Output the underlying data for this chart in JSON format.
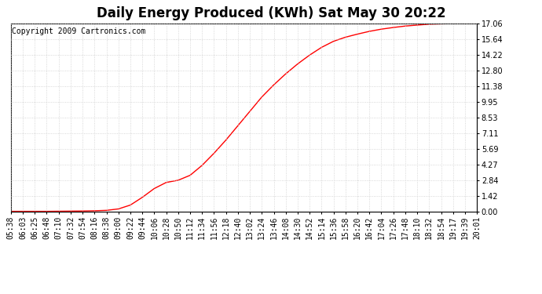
{
  "title": "Daily Energy Produced (KWh) Sat May 30 20:22",
  "copyright_text": "Copyright 2009 Cartronics.com",
  "line_color": "#ff0000",
  "background_color": "#ffffff",
  "plot_bg_color": "#ffffff",
  "grid_color": "#cccccc",
  "yticks": [
    0.0,
    1.42,
    2.84,
    4.27,
    5.69,
    7.11,
    8.53,
    9.95,
    11.38,
    12.8,
    14.22,
    15.64,
    17.06
  ],
  "ylim": [
    0.0,
    17.06
  ],
  "xtick_labels": [
    "05:38",
    "06:03",
    "06:25",
    "06:48",
    "07:10",
    "07:32",
    "07:54",
    "08:16",
    "08:38",
    "09:00",
    "09:22",
    "09:44",
    "10:06",
    "10:28",
    "10:50",
    "11:12",
    "11:34",
    "11:56",
    "12:18",
    "12:40",
    "13:02",
    "13:24",
    "13:46",
    "14:08",
    "14:30",
    "14:52",
    "15:14",
    "15:36",
    "15:58",
    "16:20",
    "16:42",
    "17:04",
    "17:26",
    "17:48",
    "18:10",
    "18:32",
    "18:54",
    "19:17",
    "19:39",
    "20:01"
  ],
  "x_values": [
    0,
    1,
    2,
    3,
    4,
    5,
    6,
    7,
    8,
    9,
    10,
    11,
    12,
    13,
    14,
    15,
    16,
    17,
    18,
    19,
    20,
    21,
    22,
    23,
    24,
    25,
    26,
    27,
    28,
    29,
    30,
    31,
    32,
    33,
    34,
    35,
    36,
    37,
    38,
    39
  ],
  "y_values": [
    0.03,
    0.03,
    0.03,
    0.03,
    0.04,
    0.05,
    0.06,
    0.08,
    0.12,
    0.25,
    0.6,
    1.3,
    2.1,
    2.65,
    2.85,
    3.3,
    4.2,
    5.3,
    6.5,
    7.8,
    9.1,
    10.4,
    11.5,
    12.5,
    13.4,
    14.2,
    14.9,
    15.45,
    15.82,
    16.1,
    16.35,
    16.55,
    16.7,
    16.83,
    16.92,
    17.0,
    17.03,
    17.05,
    17.06,
    17.06
  ],
  "title_fontsize": 12,
  "tick_fontsize": 7,
  "copyright_fontsize": 7,
  "figwidth": 6.9,
  "figheight": 3.75,
  "dpi": 100
}
